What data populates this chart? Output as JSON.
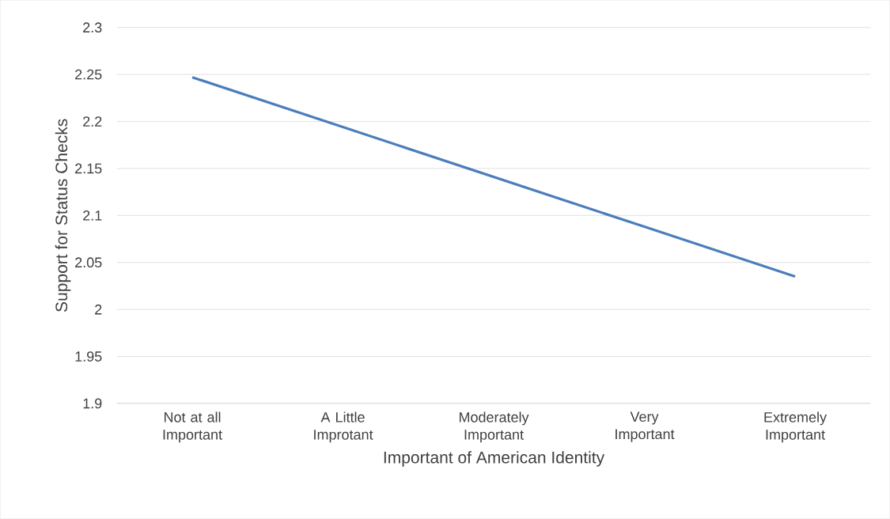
{
  "chart_data": {
    "type": "line",
    "xlabel": "Important of American Identity",
    "ylabel": "Support for Status Checks",
    "categories": [
      "Not at all Important",
      "A Little Improtant",
      "Moderately Important",
      "Very Important",
      "Extremely Important"
    ],
    "series": [
      {
        "color": "#4a7ebb",
        "values": [
          2.247,
          2.194,
          2.141,
          2.088,
          2.035
        ]
      }
    ],
    "ylim": [
      1.9,
      2.3
    ],
    "yticks": [
      1.9,
      1.95,
      2,
      2.05,
      2.1,
      2.15,
      2.2,
      2.25,
      2.3
    ],
    "grid": "y",
    "legend": false,
    "marker": "none",
    "line_style": "solid"
  }
}
